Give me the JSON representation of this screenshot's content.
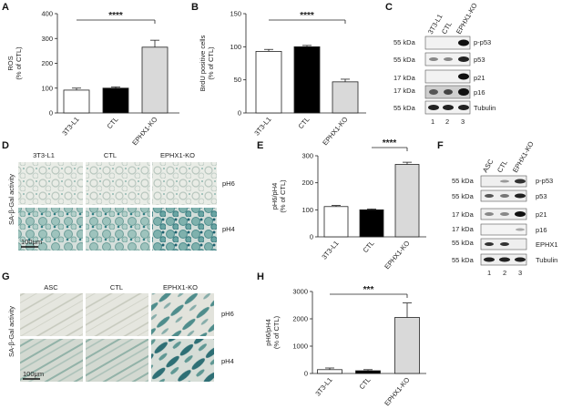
{
  "panels": {
    "A": "A",
    "B": "B",
    "C": "C",
    "D": "D",
    "E": "E",
    "F": "F",
    "G": "G",
    "H": "H"
  },
  "chart_data": [
    {
      "id": "A",
      "type": "bar",
      "ylabel": "ROS\n(% of CTL)",
      "categories": [
        "3T3-L1",
        "CTL",
        "EPHX1-KO"
      ],
      "values": [
        92,
        100,
        265
      ],
      "errors": [
        8,
        5,
        28
      ],
      "colors": [
        "#ffffff",
        "#000000",
        "#d9d9d9"
      ],
      "ylim": [
        0,
        400
      ],
      "yticks": [
        0,
        100,
        200,
        300,
        400
      ],
      "significance": "****",
      "sig_from": 0,
      "sig_to": 2
    },
    {
      "id": "B",
      "type": "bar",
      "ylabel": "BrdU positive cells\n(% of CTL)",
      "categories": [
        "3T3-L1",
        "CTL",
        "EPHX1-KO"
      ],
      "values": [
        93,
        100,
        47
      ],
      "errors": [
        3,
        2,
        4
      ],
      "colors": [
        "#ffffff",
        "#000000",
        "#d9d9d9"
      ],
      "ylim": [
        0,
        150
      ],
      "yticks": [
        0,
        50,
        100,
        150
      ],
      "significance": "****",
      "sig_from": 0,
      "sig_to": 2
    },
    {
      "id": "E",
      "type": "bar",
      "ylabel": "pH6/pH4\n(% of CTL)",
      "categories": [
        "3T3-L1",
        "CTL",
        "EPHX1-KO"
      ],
      "values": [
        112,
        100,
        268
      ],
      "errors": [
        4,
        3,
        8
      ],
      "colors": [
        "#ffffff",
        "#000000",
        "#d9d9d9"
      ],
      "ylim": [
        0,
        300
      ],
      "yticks": [
        0,
        100,
        200,
        300
      ],
      "significance": "****",
      "sig_from": 1,
      "sig_to": 2
    },
    {
      "id": "H",
      "type": "bar",
      "ylabel": "pH6/pH4\n(% of CTL)",
      "categories": [
        "3T3-L1",
        "CTL",
        "EPHX1-KO"
      ],
      "values": [
        140,
        100,
        2050
      ],
      "errors": [
        60,
        40,
        530
      ],
      "colors": [
        "#ffffff",
        "#000000",
        "#d9d9d9"
      ],
      "ylim": [
        0,
        3000
      ],
      "yticks": [
        0,
        1000,
        2000,
        3000
      ],
      "significance": "***",
      "sig_from": 0,
      "sig_to": 2
    }
  ],
  "blot_c": {
    "lanes": [
      "3T3-L1",
      "CTL",
      "EPHX1-KO"
    ],
    "lane_numbers": [
      "1",
      "2",
      "3"
    ],
    "rows": [
      {
        "kda": "55 kDa",
        "protein": "p-p53"
      },
      {
        "kda": "55 kDa",
        "protein": "p53"
      },
      {
        "kda": "17 kDa",
        "protein": "p21"
      },
      {
        "kda": "17 kDa",
        "protein": "p16"
      },
      {
        "kda": "55 kDa",
        "protein": "Tubulin"
      }
    ]
  },
  "blot_f": {
    "lanes": [
      "ASC",
      "CTL",
      "EPHX1-KO"
    ],
    "lane_numbers": [
      "1",
      "2",
      "3"
    ],
    "rows": [
      {
        "kda": "55 kDa",
        "protein": "p-p53"
      },
      {
        "kda": "55 kDa",
        "protein": "p53"
      },
      {
        "kda": "17 kDa",
        "protein": "p21"
      },
      {
        "kda": "17 kDa",
        "protein": "p16"
      },
      {
        "kda": "55 kDa",
        "protein": "EPHX1"
      },
      {
        "kda": "55 kDa",
        "protein": "Tubulin"
      }
    ]
  },
  "images_d": {
    "columns": [
      "3T3-L1",
      "CTL",
      "EPHX1-KO"
    ],
    "rows": [
      "pH6",
      "pH4"
    ],
    "side_label": "SA-β-Gal activity",
    "scalebar": "100μm"
  },
  "images_g": {
    "columns": [
      "ASC",
      "CTL",
      "EPHX1-KO"
    ],
    "rows": [
      "pH6",
      "pH4"
    ],
    "side_label": "SA-β-Gal activity",
    "scalebar": "100μm"
  }
}
